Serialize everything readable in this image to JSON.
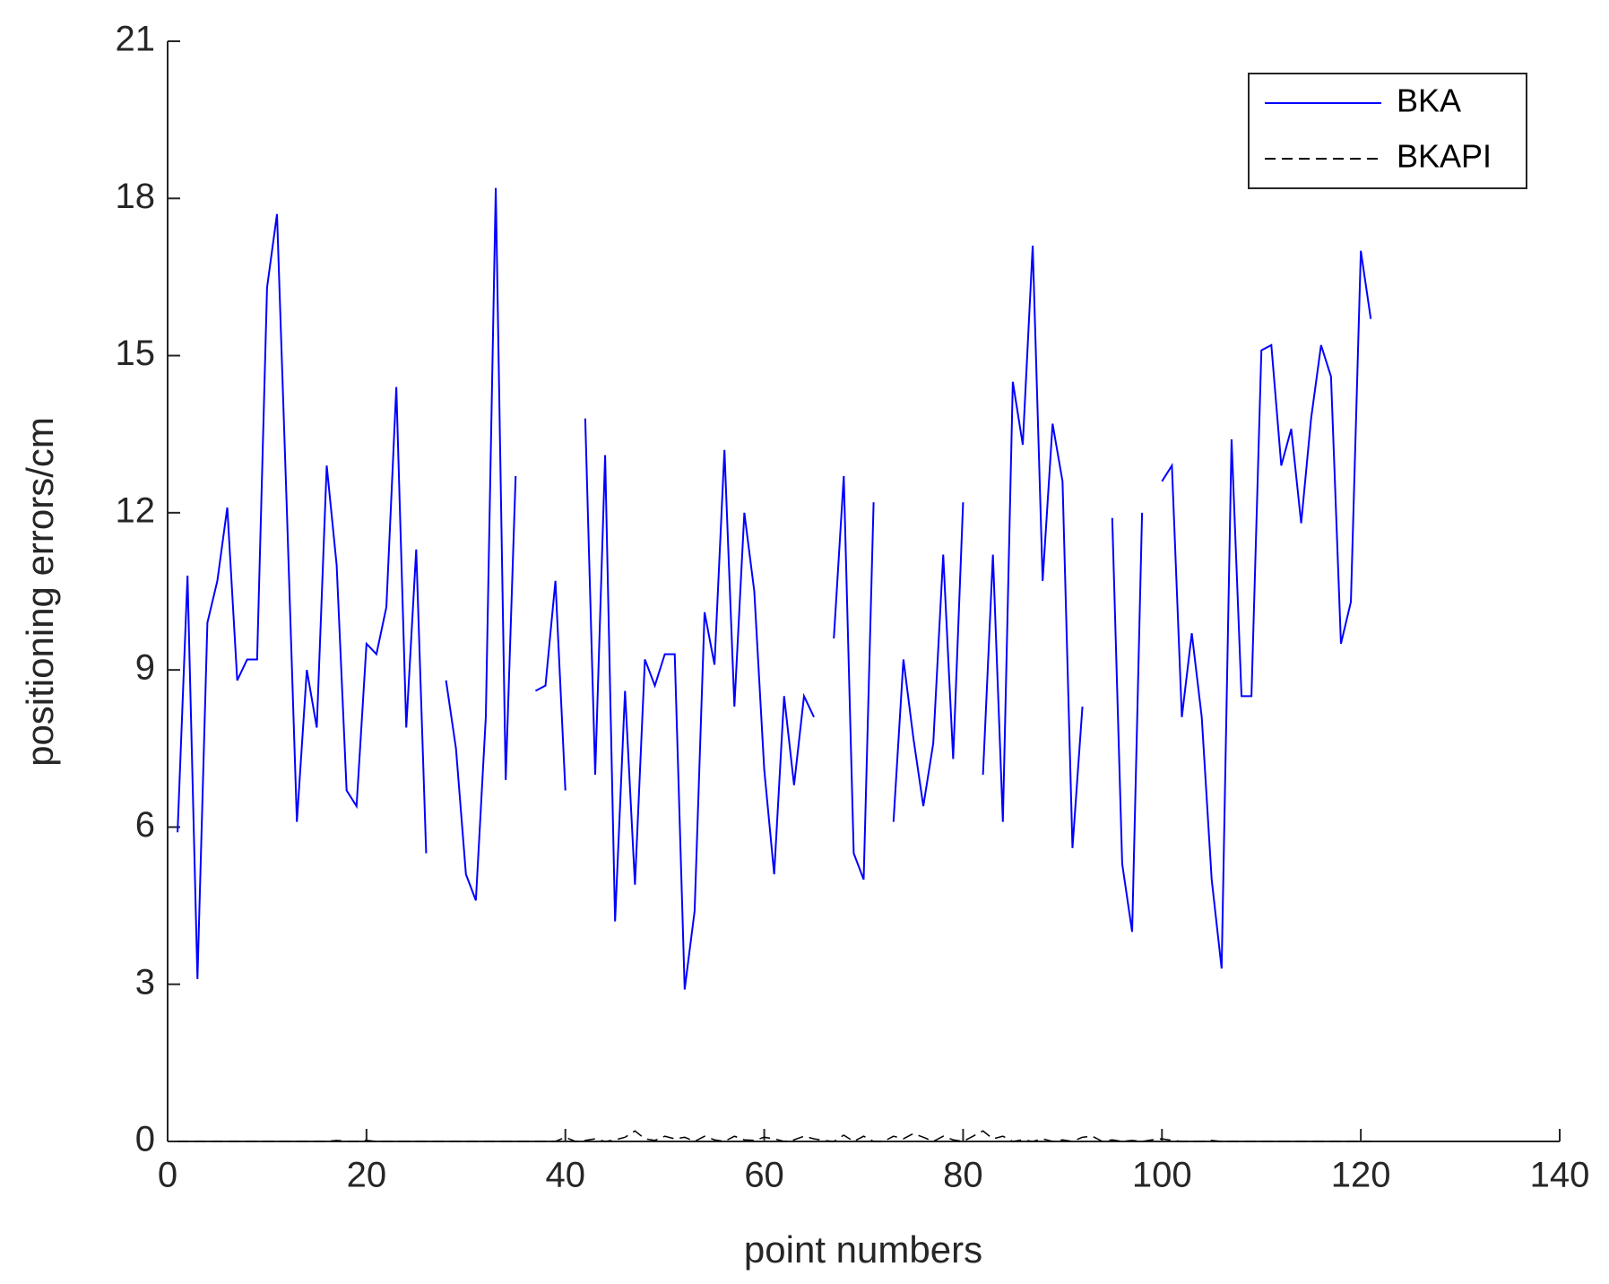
{
  "chart_data": {
    "type": "line",
    "x_label": "point numbers",
    "y_label": "positioning errors/cm",
    "x": [
      1,
      2,
      3,
      4,
      5,
      6,
      7,
      8,
      9,
      10,
      11,
      12,
      13,
      14,
      15,
      16,
      17,
      18,
      19,
      20,
      21,
      22,
      23,
      24,
      25,
      26,
      27,
      28,
      29,
      30,
      31,
      32,
      33,
      34,
      35,
      36,
      37,
      38,
      39,
      40,
      41,
      42,
      43,
      44,
      45,
      46,
      47,
      48,
      49,
      50,
      51,
      52,
      53,
      54,
      55,
      56,
      57,
      58,
      59,
      60,
      61,
      62,
      63,
      64,
      65,
      66,
      67,
      68,
      69,
      70,
      71,
      72,
      73,
      74,
      75,
      76,
      77,
      78,
      79,
      80,
      81,
      82,
      83,
      84,
      85,
      86,
      87,
      88,
      89,
      90,
      91,
      92,
      93,
      94,
      95,
      96,
      97,
      98,
      99,
      100,
      101,
      102,
      103,
      104,
      105,
      106,
      107,
      108,
      109,
      110,
      111,
      112,
      113,
      114,
      115,
      116,
      117,
      118,
      119,
      120,
      121
    ],
    "series": [
      {
        "name": "BKA",
        "color": "#0000ff",
        "dash": false,
        "values": [
          5.9,
          10.8,
          3.1,
          9.9,
          10.7,
          12.1,
          8.8,
          9.2,
          9.2,
          16.3,
          17.7,
          12.0,
          6.1,
          9.0,
          7.9,
          12.9,
          11.0,
          6.7,
          6.4,
          9.5,
          9.3,
          10.2,
          14.4,
          7.9,
          11.3,
          5.5,
          null,
          8.8,
          7.5,
          5.1,
          4.6,
          8.1,
          18.2,
          6.9,
          12.7,
          null,
          8.6,
          8.7,
          10.7,
          6.7,
          null,
          13.8,
          7.0,
          13.1,
          4.2,
          8.6,
          4.9,
          9.2,
          8.7,
          9.3,
          9.3,
          2.9,
          4.4,
          10.1,
          9.1,
          13.2,
          8.3,
          12.0,
          10.5,
          7.1,
          5.1,
          8.5,
          6.8,
          8.5,
          8.1,
          null,
          9.6,
          12.7,
          5.5,
          5.0,
          12.2,
          null,
          6.1,
          9.2,
          7.7,
          6.4,
          7.6,
          11.2,
          7.3,
          12.2,
          null,
          7.0,
          11.2,
          6.1,
          14.5,
          13.3,
          17.1,
          10.7,
          13.7,
          12.6,
          5.6,
          8.3,
          null,
          null,
          11.9,
          5.3,
          4.0,
          12.0,
          null,
          12.6,
          12.9,
          8.1,
          9.7,
          8.1,
          5.0,
          3.3,
          13.4,
          8.5,
          8.5,
          15.1,
          15.2,
          12.9,
          13.6,
          11.8,
          13.8,
          15.2,
          14.6,
          9.5,
          10.3,
          17.0,
          15.7
        ]
      },
      {
        "name": "BKAPI",
        "color": "#000000",
        "dash": true,
        "values": [
          0,
          0,
          0,
          0,
          0,
          0,
          0,
          0,
          0,
          0,
          0,
          0,
          0,
          0,
          0,
          0,
          0.02,
          0,
          0,
          0.02,
          0,
          0,
          0,
          0,
          0,
          0,
          0,
          0,
          0,
          0,
          0,
          0,
          0,
          0,
          0,
          0,
          0,
          0,
          0,
          0.08,
          0,
          0.02,
          0.05,
          0,
          0.03,
          0.08,
          0.2,
          0.05,
          0.02,
          0.1,
          0.05,
          0.08,
          0,
          0.1,
          0.03,
          0,
          0.1,
          0.03,
          0.02,
          0.08,
          0.05,
          0,
          0.03,
          0.1,
          0.05,
          0.02,
          0,
          0.12,
          0,
          0.1,
          0,
          0,
          0.1,
          0.05,
          0.15,
          0.08,
          0,
          0.1,
          0.03,
          0,
          0.1,
          0.2,
          0.05,
          0.1,
          0,
          0.03,
          0,
          0.05,
          0,
          0.03,
          0,
          0.08,
          0.1,
          0,
          0.03,
          0,
          0.02,
          0,
          0.03,
          0.05,
          0.02,
          0,
          0,
          0,
          0.02,
          0,
          0,
          0,
          0,
          0,
          0,
          0,
          0,
          0,
          0,
          0,
          0,
          0,
          0,
          0,
          0
        ]
      }
    ],
    "xlim": [
      0,
      140
    ],
    "xticks": [
      0,
      20,
      40,
      60,
      80,
      100,
      120,
      140
    ],
    "ylim": [
      0,
      21
    ],
    "yticks": [
      0,
      3,
      6,
      9,
      12,
      15,
      18,
      21
    ],
    "legend": "top-right"
  }
}
